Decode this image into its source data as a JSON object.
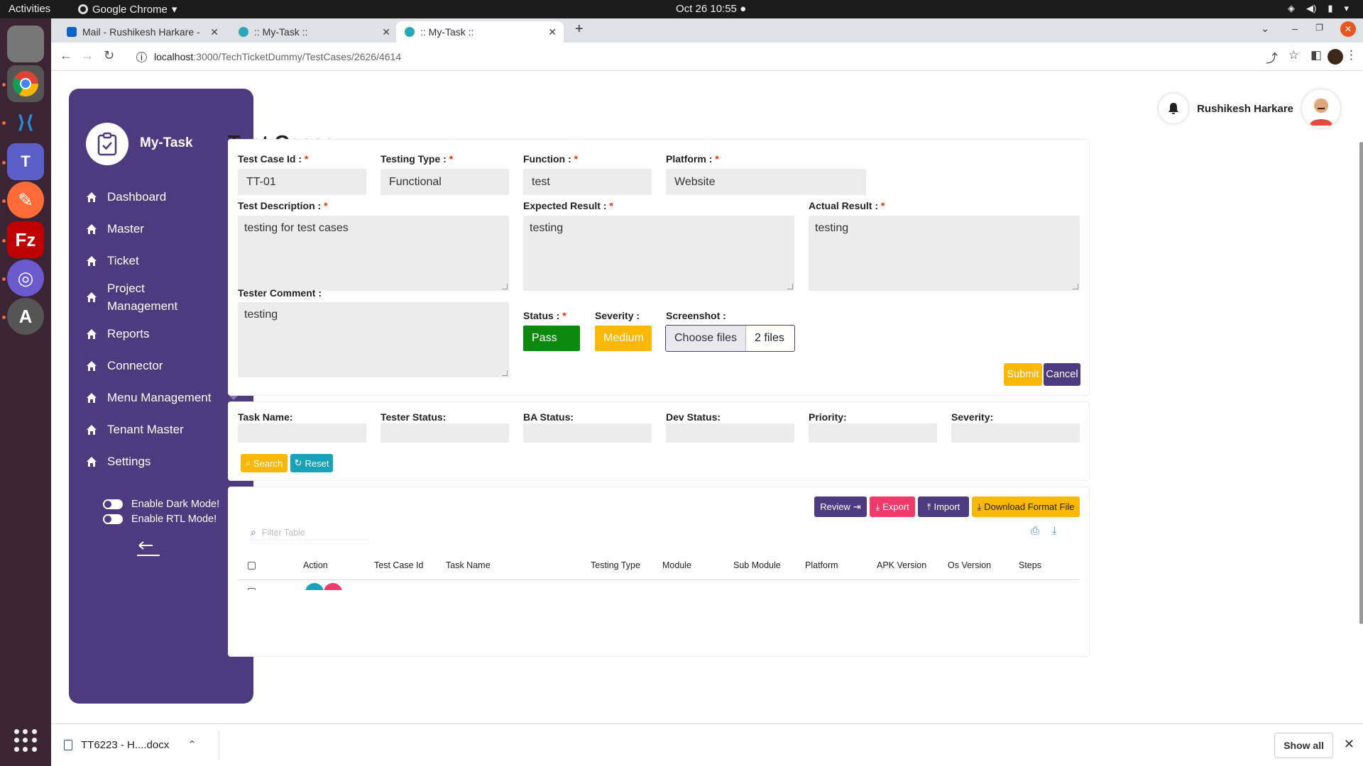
{
  "system": {
    "activities": "Activities",
    "browser_name": "Google Chrome",
    "clock": "Oct 26  10:55"
  },
  "tabs": [
    {
      "title": "Mail - Rushikesh Harkare -",
      "fav_color": "#0a64c8"
    },
    {
      "title": ":: My-Task ::",
      "fav_color": "#2aa7b6"
    },
    {
      "title": ":: My-Task ::",
      "fav_color": "#2aa7b6"
    }
  ],
  "address": {
    "host": "localhost",
    "path": ":3000/TechTicketDummy/TestCases/2626/4614"
  },
  "brand": {
    "name": "My-Task"
  },
  "sidebar": {
    "items": [
      {
        "label": "Dashboard"
      },
      {
        "label": "Master"
      },
      {
        "label": "Ticket"
      },
      {
        "label": "Project Management"
      },
      {
        "label": "Reports"
      },
      {
        "label": "Connector"
      },
      {
        "label": "Menu Management"
      },
      {
        "label": "Tenant Master"
      },
      {
        "label": "Settings"
      }
    ],
    "dark_mode": "Enable Dark Mode!",
    "rtl_mode": "Enable RTL Mode!"
  },
  "user": {
    "name": "Rushikesh Harkare"
  },
  "page": {
    "title": "Test Cases"
  },
  "form": {
    "test_case_id": {
      "label": "Test Case Id :",
      "value": "TT-01"
    },
    "testing_type": {
      "label": "Testing Type :",
      "value": "Functional"
    },
    "function": {
      "label": "Function :",
      "value": "test"
    },
    "platform": {
      "label": "Platform :",
      "value": "Website"
    },
    "test_description": {
      "label": "Test Description :",
      "value": "testing for test cases"
    },
    "expected_result": {
      "label": "Expected Result :",
      "value": "testing"
    },
    "actual_result": {
      "label": "Actual Result :",
      "value": "testing"
    },
    "tester_comment": {
      "label": "Tester Comment :",
      "value": "testing"
    },
    "status": {
      "label": "Status :",
      "value": "Pass",
      "color": "#0d8a0d"
    },
    "severity": {
      "label": "Severity :",
      "value": "Medium",
      "color": "#f9b707"
    },
    "screenshot": {
      "label": "Screenshot :",
      "choose": "Choose files",
      "count": "2 files"
    },
    "required_mark": "*",
    "submit": "Submit",
    "cancel": "Cancel"
  },
  "filters": {
    "task_name": "Task Name:",
    "tester_status": "Tester Status:",
    "ba_status": "BA Status:",
    "dev_status": "Dev Status:",
    "priority": "Priority:",
    "severity": "Severity:",
    "search": "Search",
    "reset": "Reset"
  },
  "table": {
    "review": "Review",
    "export": "Export",
    "import": "Import",
    "download_format": "Download Format File",
    "filter_placeholder": "Filter Table",
    "columns": [
      "Action",
      "Test Case Id",
      "Task Name",
      "Testing Type",
      "Module",
      "Sub Module",
      "Platform",
      "APK Version",
      "Os Version",
      "Steps"
    ]
  },
  "downloads": {
    "file": "TT6223 - H....docx",
    "show_all": "Show all"
  },
  "colors": {
    "sidebar": "#4e3b7f",
    "yellow": "#f9b707",
    "teal": "#17a2b8",
    "pink": "#ef3a6a",
    "green": "#0d8a0d"
  }
}
